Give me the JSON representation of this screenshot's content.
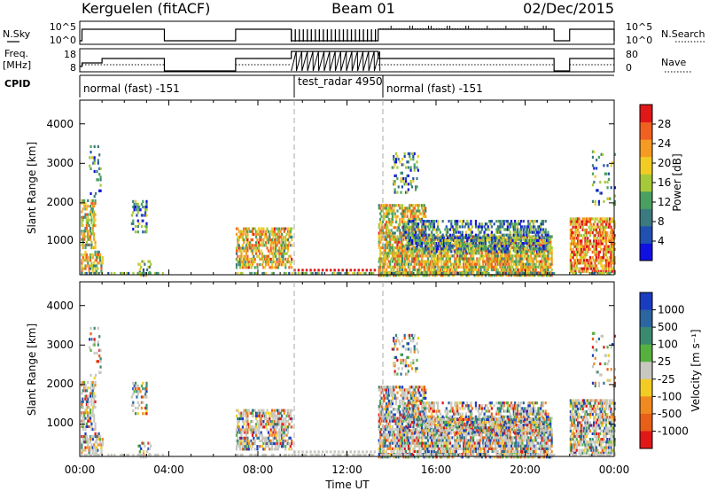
{
  "header": {
    "title": "Kerguelen (fitACF)",
    "beam": "Beam 01",
    "date": "02/Dec/2015"
  },
  "top_panels": {
    "nsky_label": "N.Sky",
    "nsearch_label": "N.Search",
    "freq_label_1": "Freq.",
    "freq_label_2": "[MHz]",
    "nave_label": "Nave",
    "cpid_label": "CPID",
    "nsky_ticks": [
      "10^5",
      "10^0"
    ],
    "nsearch_ticks": [
      "10^5",
      "10^0"
    ],
    "freq_ticks": [
      "18",
      "8"
    ],
    "nave_ticks": [
      "80",
      "0"
    ]
  },
  "cpid_segments": [
    {
      "label": "normal (fast) -151",
      "start": 0.0
    },
    {
      "label": "test_radar 4950",
      "start": 9.5
    },
    {
      "label": "normal (fast) -151",
      "start": 13.4
    }
  ],
  "axes": {
    "xlabel": "Time UT",
    "x_ticks": [
      "00:00",
      "04:00",
      "08:00",
      "12:00",
      "16:00",
      "20:00",
      "00:00"
    ],
    "ylabel": "Slant Range [km]",
    "y_ticks": [
      "1000",
      "2000",
      "3000",
      "4000"
    ]
  },
  "colorbars": {
    "power": {
      "label": "Power [dB]",
      "ticks": [
        "4",
        "8",
        "12",
        "16",
        "20",
        "24",
        "28"
      ],
      "colors": [
        "#1010e0",
        "#2050b0",
        "#3a7a80",
        "#4aa060",
        "#a6c93a",
        "#f2cc24",
        "#f59a22",
        "#f06020",
        "#e01818"
      ]
    },
    "velocity": {
      "label": "Velocity [m s⁻¹]",
      "ticks": [
        "1000",
        "500",
        "100",
        "25",
        "-25",
        "-100",
        "-500",
        "-1000"
      ],
      "colors": [
        "#1a3cc0",
        "#2c66a0",
        "#3a8a70",
        "#56b040",
        "#c8c8c0",
        "#f2cc24",
        "#f08a20",
        "#e86018",
        "#e01818"
      ]
    }
  },
  "chart_data": [
    {
      "type": "heatmap",
      "title": "Power",
      "xlabel": "Time UT",
      "ylabel": "Slant Range [km]",
      "xlim": [
        0,
        24
      ],
      "ylim": [
        180,
        4600
      ],
      "colorbar_label": "Power [dB]",
      "colorbar_range": [
        0,
        32
      ]
    },
    {
      "type": "heatmap",
      "title": "Velocity",
      "xlabel": "Time UT",
      "ylabel": "Slant Range [km]",
      "xlim": [
        0,
        24
      ],
      "ylim": [
        180,
        4600
      ],
      "colorbar_label": "Velocity [m s⁻¹]",
      "colorbar_ticks": [
        1000,
        500,
        100,
        25,
        -25,
        -100,
        -500,
        -1000
      ]
    }
  ]
}
